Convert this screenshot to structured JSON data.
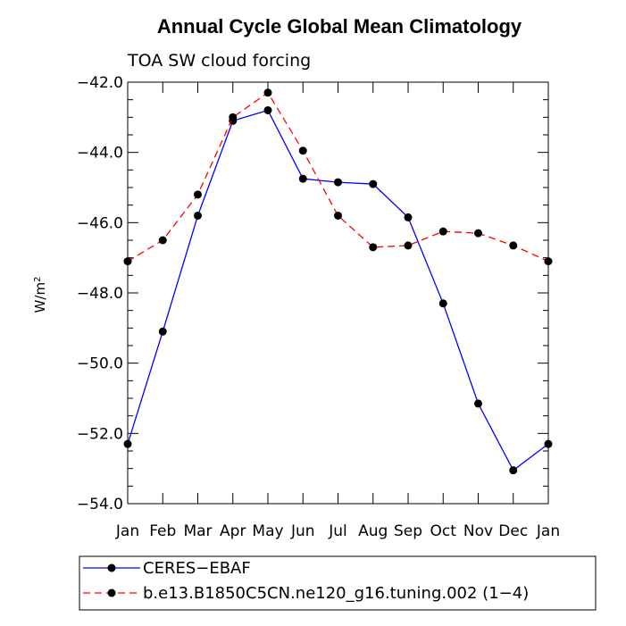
{
  "chart_data": {
    "type": "line",
    "title": "Annual Cycle Global Mean Climatology",
    "subtitle": "TOA SW cloud forcing",
    "xlabel": "",
    "ylabel": "W/m",
    "ylabel_superscript": "2",
    "categories": [
      "Jan",
      "Feb",
      "Mar",
      "Apr",
      "May",
      "Jun",
      "Jul",
      "Aug",
      "Sep",
      "Oct",
      "Nov",
      "Dec",
      "Jan"
    ],
    "ylim": [
      -54.0,
      -42.0
    ],
    "yticks": [
      -54.0,
      -52.0,
      -50.0,
      -48.0,
      -46.0,
      -44.0,
      -42.0
    ],
    "ytick_labels": [
      "−54.0",
      "−52.0",
      "−50.0",
      "−48.0",
      "−46.0",
      "−44.0",
      "−42.0"
    ],
    "series": [
      {
        "name": "CERES−EBAF",
        "color": "#0000ff",
        "dashed": false,
        "values": [
          -52.3,
          -49.1,
          -45.8,
          -43.1,
          -42.8,
          -44.75,
          -44.85,
          -44.9,
          -45.85,
          -48.3,
          -51.15,
          -53.05,
          -52.3
        ]
      },
      {
        "name": "b.e13.B1850C5CN.ne120_g16.tuning.002 (1−4)",
        "color": "#ff0000",
        "dashed": true,
        "values": [
          -47.1,
          -46.5,
          -45.2,
          -43.0,
          -42.3,
          -43.95,
          -45.8,
          -46.7,
          -46.65,
          -46.25,
          -46.3,
          -46.65,
          -47.1
        ]
      }
    ],
    "grid": false,
    "legend": "bottom-left, below plot"
  }
}
